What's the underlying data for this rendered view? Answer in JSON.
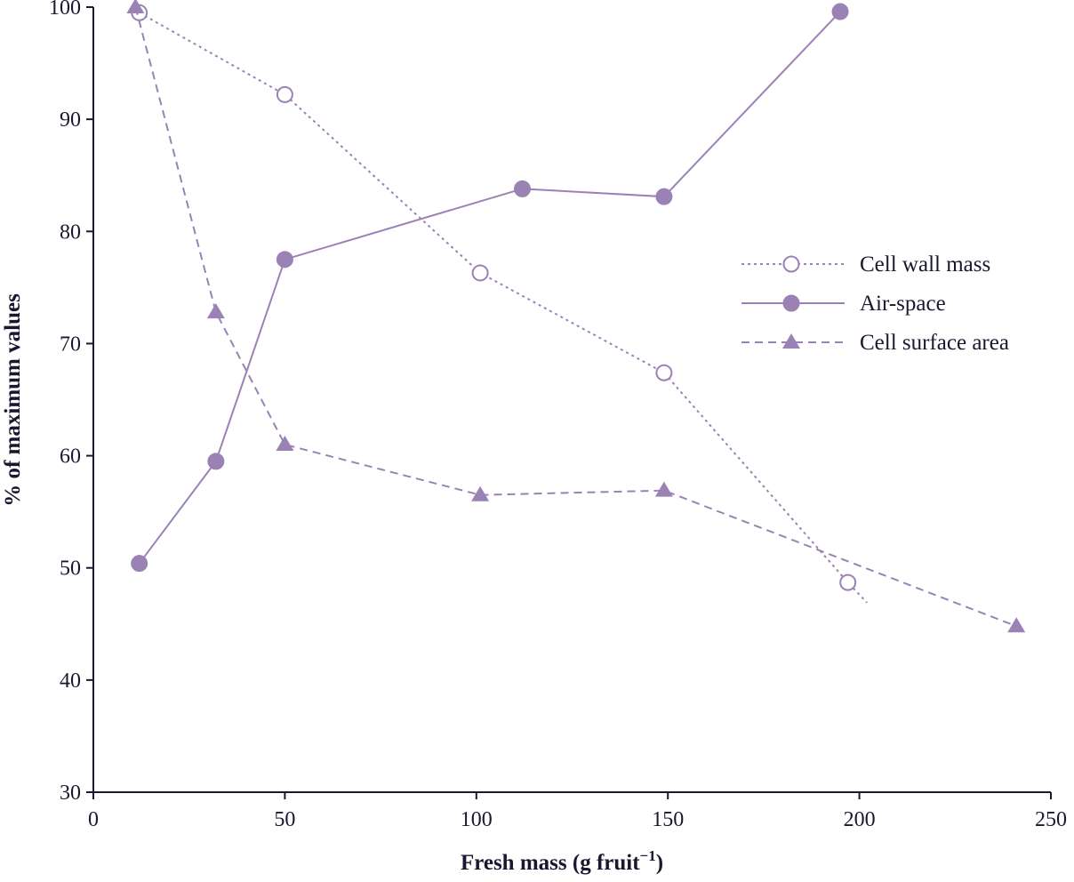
{
  "chart_data": {
    "type": "line",
    "title": "",
    "xlabel": "Fresh mass (g fruit",
    "xlabel_sup": "−1",
    "xlabel_close": ")",
    "ylabel": "% of maximum values",
    "xlim": [
      0,
      250
    ],
    "ylim": [
      30,
      100
    ],
    "xticks": [
      0,
      50,
      100,
      150,
      200,
      250
    ],
    "yticks": [
      30,
      40,
      50,
      60,
      70,
      80,
      90,
      100
    ],
    "grid": false,
    "legend_position": "right-middle",
    "color": "#9b82b5",
    "series": [
      {
        "name": "Cell wall mass",
        "marker": "open-circle",
        "line": "dotted",
        "points": [
          [
            12,
            99.5
          ],
          [
            50,
            92.2
          ],
          [
            101,
            76.3
          ],
          [
            149,
            67.4
          ],
          [
            197,
            48.7
          ]
        ],
        "line_end": [
          202,
          46.9
        ]
      },
      {
        "name": "Air-space",
        "marker": "filled-circle",
        "line": "solid",
        "points": [
          [
            12,
            50.4
          ],
          [
            32,
            59.5
          ],
          [
            50,
            77.5
          ],
          [
            112,
            83.8
          ],
          [
            149,
            83.1
          ],
          [
            195,
            99.6
          ]
        ]
      },
      {
        "name": "Cell surface area",
        "marker": "triangle",
        "line": "dashed",
        "points": [
          [
            11,
            100
          ],
          [
            32,
            72.8
          ],
          [
            50,
            61.0
          ],
          [
            101,
            56.5
          ],
          [
            149,
            56.9
          ],
          [
            241,
            44.8
          ]
        ]
      }
    ]
  }
}
